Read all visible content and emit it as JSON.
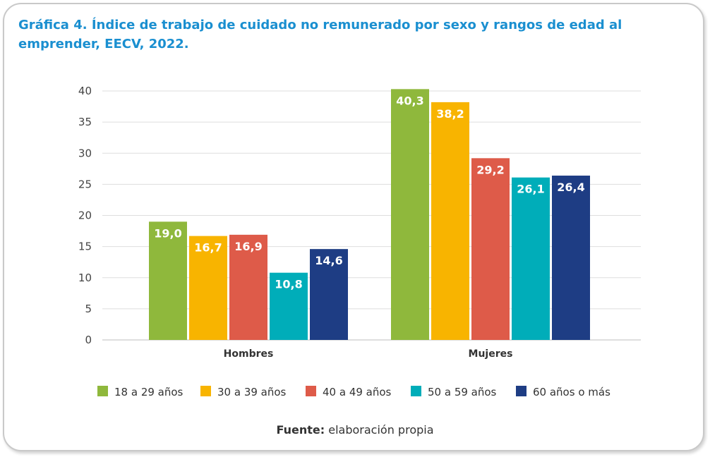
{
  "title": "Gráfica 4. Índice de trabajo de cuidado no remunerado por sexo y rangos de edad al emprender, EECV, 2022.",
  "source": {
    "label": "Fuente:",
    "text": "elaboración propia"
  },
  "chart_data": {
    "type": "bar",
    "categories": [
      "Hombres",
      "Mujeres"
    ],
    "series": [
      {
        "name": "18 a 29 años",
        "color": "#8fb83c",
        "values": [
          19.0,
          40.3
        ],
        "labels": [
          "19,0",
          "40,3"
        ]
      },
      {
        "name": "30 a 39 años",
        "color": "#f8b400",
        "values": [
          16.7,
          38.2
        ],
        "labels": [
          "16,7",
          "38,2"
        ]
      },
      {
        "name": "40 a 49 años",
        "color": "#de5b49",
        "values": [
          16.9,
          29.2
        ],
        "labels": [
          "16,9",
          "29,2"
        ]
      },
      {
        "name": "50 a 59 años",
        "color": "#00adb9",
        "values": [
          10.8,
          26.1
        ],
        "labels": [
          "10,8",
          "26,1"
        ]
      },
      {
        "name": "60 años o más",
        "color": "#1e3d84",
        "values": [
          14.6,
          26.4
        ],
        "labels": [
          "14,6",
          "26,4"
        ]
      }
    ],
    "ylim": [
      0,
      40
    ],
    "yticks": [
      0,
      5,
      10,
      15,
      20,
      25,
      30,
      35,
      40
    ],
    "grid": true,
    "legend_position": "bottom"
  }
}
